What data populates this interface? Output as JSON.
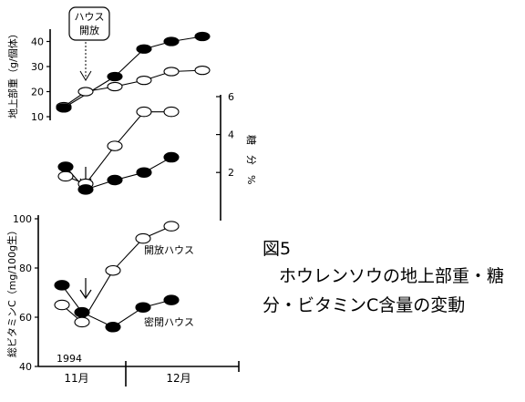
{
  "caption": {
    "figure_label": "図5",
    "line1": "ホウレンソウの地上部重・糖",
    "line2": "分・ビタミンC含量の変動"
  },
  "x_axis": {
    "labels": [
      "11月",
      "12月"
    ],
    "year": "1994"
  },
  "series_legend": {
    "open": "開放ハウス",
    "closed": "密閉ハウス"
  },
  "colors": {
    "open_series": "#ffffff",
    "closed_series": "#000000",
    "line": "#000000"
  },
  "chart_data": [
    {
      "type": "line",
      "ylabel": "地上部重（g/個体）",
      "ylim": [
        10,
        42
      ],
      "yticks": [
        10,
        20,
        30,
        40
      ],
      "annotation": {
        "line1": "ハウス",
        "line2": "開放",
        "at_x": 2
      },
      "series": [
        {
          "key": "open",
          "marker": "open",
          "x": [
            1,
            2,
            3,
            4,
            5,
            6
          ],
          "values": [
            14,
            20,
            22,
            24.5,
            28,
            28.5
          ]
        },
        {
          "key": "closed",
          "marker": "filled",
          "x": [
            1,
            3,
            4,
            5,
            6
          ],
          "values": [
            13.5,
            26,
            37,
            40,
            42
          ]
        }
      ]
    },
    {
      "type": "line",
      "ylabel": "糖　分　%",
      "ylim": [
        1,
        6
      ],
      "yticks": [
        2,
        4,
        6
      ],
      "arrow_at_x": 2,
      "series": [
        {
          "key": "open",
          "marker": "open",
          "x": [
            0,
            1,
            2,
            3,
            4
          ],
          "values": [
            1.8,
            1.4,
            3.4,
            5.2,
            5.2
          ]
        },
        {
          "key": "closed",
          "marker": "filled",
          "x": [
            0,
            1,
            2,
            3,
            4
          ],
          "values": [
            2.3,
            1.1,
            1.6,
            2.0,
            2.8
          ]
        }
      ]
    },
    {
      "type": "line",
      "ylabel": "総ビタミンC（mg/100g生）",
      "ylim": [
        40,
        100
      ],
      "yticks": [
        40,
        60,
        80,
        100
      ],
      "arrow_at_x": 2,
      "series": [
        {
          "key": "open",
          "marker": "open",
          "x": [
            0,
            1,
            2,
            3,
            4
          ],
          "values": [
            65,
            58,
            79,
            92,
            97
          ]
        },
        {
          "key": "closed",
          "marker": "filled",
          "x": [
            0,
            1,
            2,
            3,
            4
          ],
          "values": [
            73,
            62,
            56,
            64,
            67
          ]
        }
      ]
    }
  ]
}
